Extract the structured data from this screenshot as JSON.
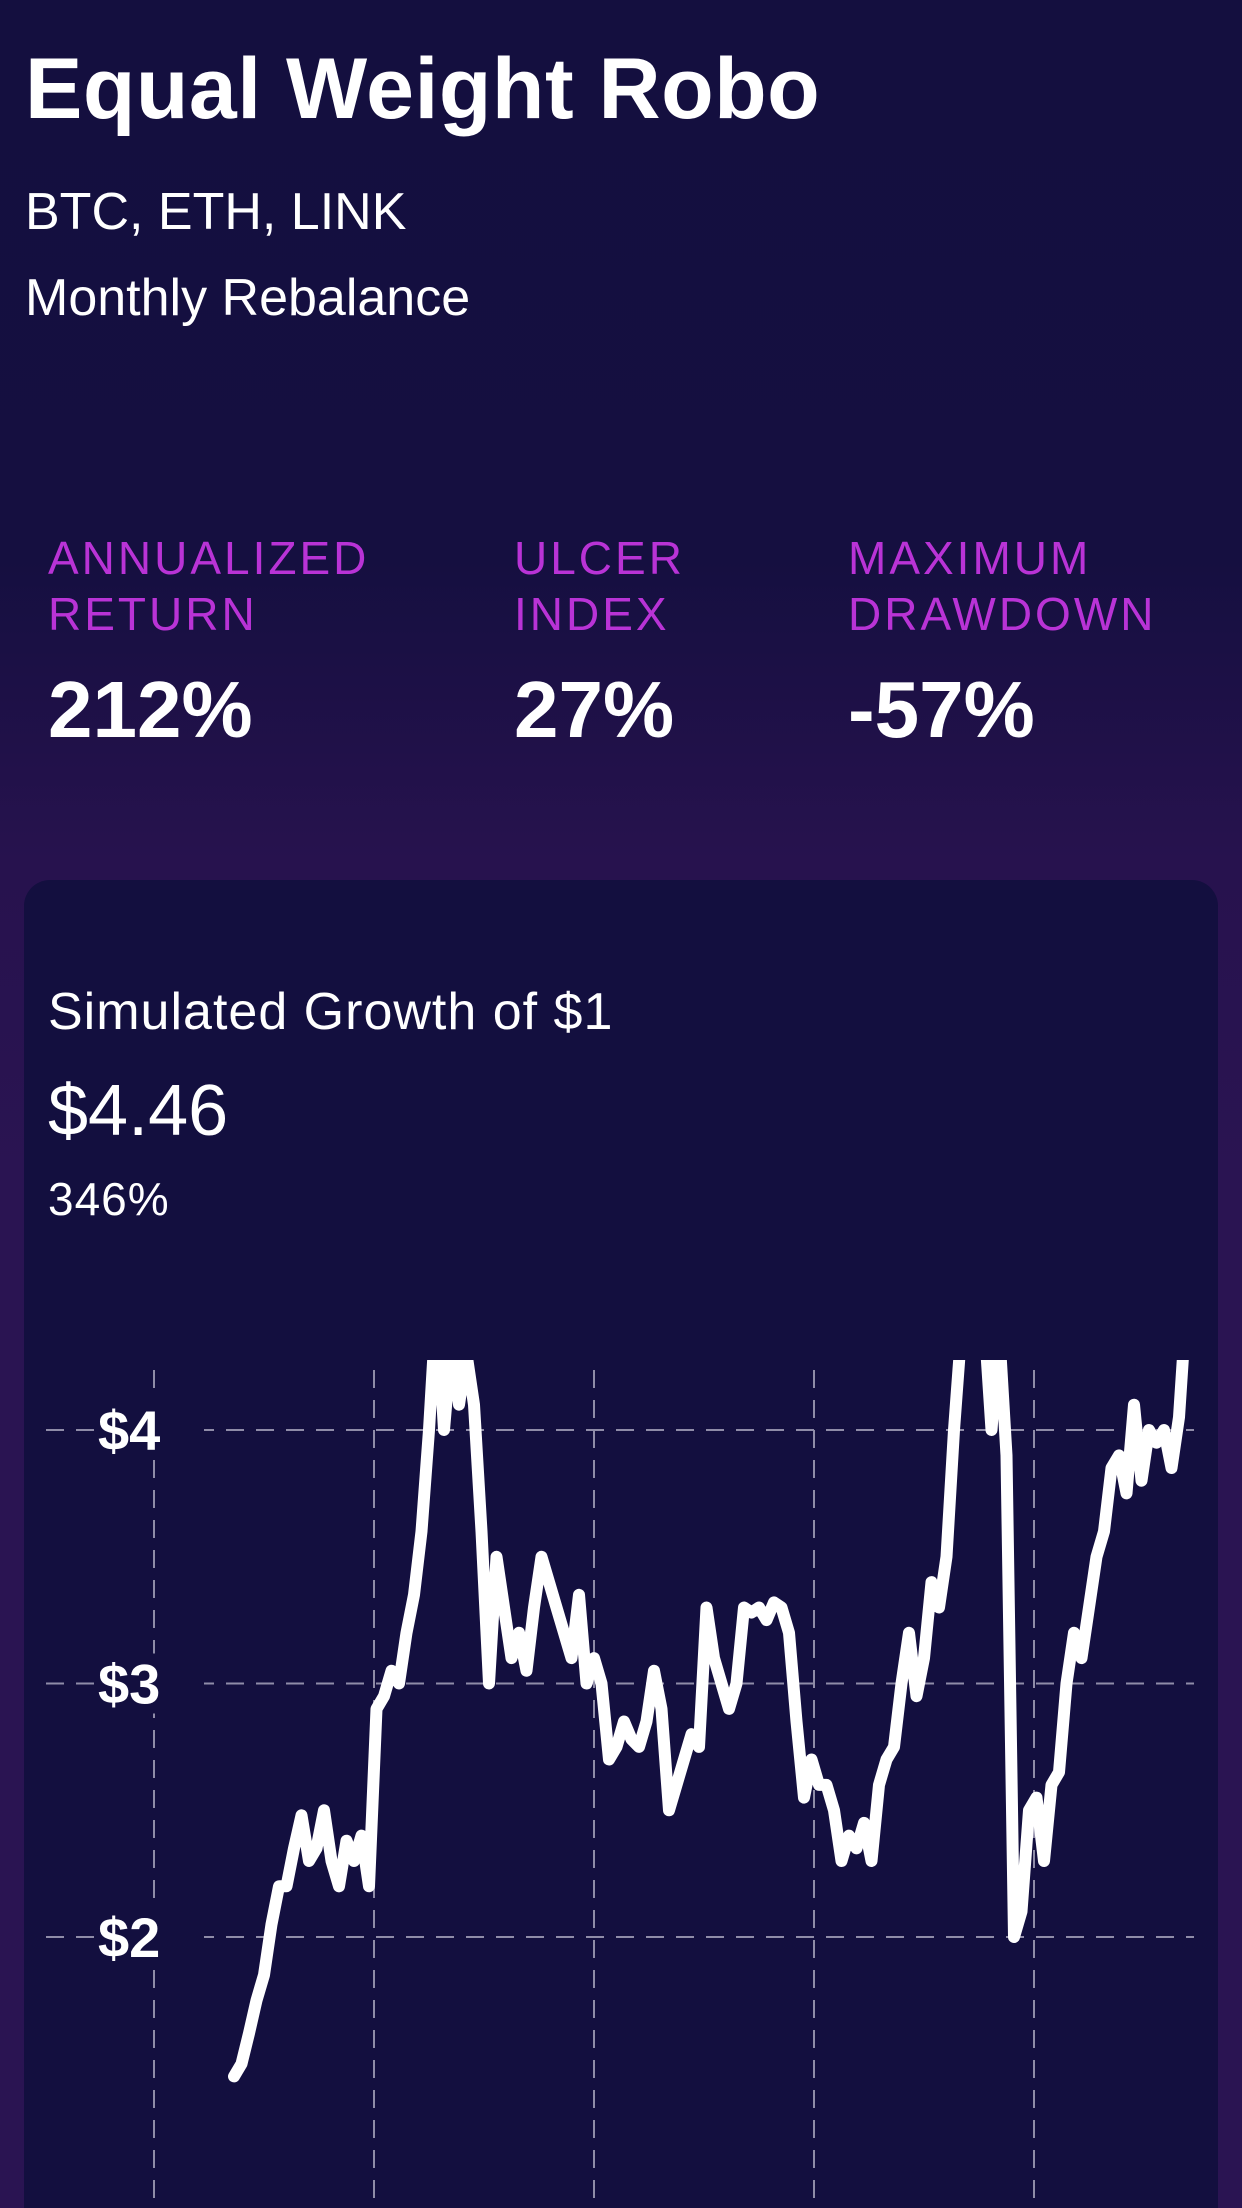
{
  "strategy": {
    "name": "Equal Weight Robo",
    "assets": "BTC, ETH, LINK",
    "rebalance": "Monthly Rebalance"
  },
  "metrics": [
    {
      "label_line1": "ANNUALIZED",
      "label_line2": "RETURN",
      "value": "212%"
    },
    {
      "label_line1": "ULCER",
      "label_line2": "INDEX",
      "value": "27%"
    },
    {
      "label_line1": "MAXIMUM",
      "label_line2": "DRAWDOWN",
      "value": "-57%"
    }
  ],
  "growth_card": {
    "title": "Simulated Growth of $1",
    "amount": "$4.46",
    "percent": "346%"
  },
  "colors": {
    "background": "#130f3f",
    "accent_label": "#b933d6",
    "line": "#ffffff",
    "grid": "#8f8ca8"
  },
  "chart_data": {
    "type": "line",
    "title": "",
    "xlabel": "",
    "ylabel": "",
    "y_ticks": [
      "$2",
      "$3",
      "$4"
    ],
    "y_tick_values": [
      2,
      3,
      4
    ],
    "grid": "dashed, vertical and horizontal",
    "ylim": [
      1.45,
      4.75
    ],
    "series": [
      {
        "values": [
          1.45,
          1.5,
          1.62,
          1.75,
          1.85,
          2.05,
          2.2,
          2.2,
          2.35,
          2.48,
          2.3,
          2.35,
          2.5,
          2.3,
          2.2,
          2.38,
          2.3,
          2.4,
          2.2,
          2.9,
          2.95,
          3.05,
          3.0,
          3.2,
          3.35,
          3.6,
          4.0,
          4.5,
          4.0,
          4.35,
          4.1,
          4.3,
          4.1,
          3.6,
          3.0,
          3.5,
          3.3,
          3.1,
          3.2,
          3.05,
          3.3,
          3.5,
          3.4,
          3.3,
          3.2,
          3.1,
          3.35,
          3.0,
          3.1,
          3.0,
          2.7,
          2.75,
          2.85,
          2.78,
          2.75,
          2.85,
          3.05,
          2.9,
          2.5,
          2.6,
          2.7,
          2.8,
          2.75,
          3.3,
          3.1,
          3.0,
          2.9,
          3.0,
          3.3,
          3.28,
          3.3,
          3.25,
          3.32,
          3.3,
          3.2,
          2.85,
          2.55,
          2.7,
          2.6,
          2.6,
          2.5,
          2.3,
          2.4,
          2.35,
          2.45,
          2.3,
          2.6,
          2.7,
          2.75,
          3.0,
          3.2,
          2.95,
          3.1,
          3.4,
          3.3,
          3.5,
          4.0,
          4.4,
          4.7,
          4.3,
          4.45,
          4.0,
          4.4,
          3.9,
          2.0,
          2.1,
          2.5,
          2.55,
          2.3,
          2.6,
          2.65,
          3.0,
          3.2,
          3.1,
          3.3,
          3.5,
          3.6,
          3.85,
          3.9,
          3.75,
          4.1,
          3.8,
          4.0,
          3.95,
          4.0,
          3.85,
          4.05,
          4.5,
          4.46
        ]
      }
    ]
  }
}
